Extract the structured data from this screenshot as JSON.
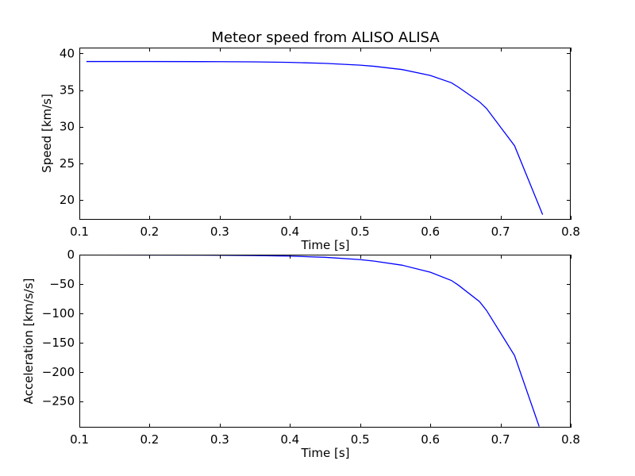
{
  "chart_data": [
    {
      "type": "line",
      "title": "Meteor speed from  ALISO ALISA",
      "xlabel": "Time [s]",
      "ylabel": "Speed [km/s]",
      "xlim": [
        0.1,
        0.8
      ],
      "ylim": [
        17.3,
        40.8
      ],
      "xticks": [
        0.1,
        0.2,
        0.3,
        0.4,
        0.5,
        0.6,
        0.7,
        0.8
      ],
      "xtick_labels": [
        "0.1",
        "0.2",
        "0.3",
        "0.4",
        "0.5",
        "0.6",
        "0.7",
        "0.8"
      ],
      "yticks": [
        20,
        25,
        30,
        35,
        40
      ],
      "ytick_labels": [
        "20",
        "25",
        "30",
        "35",
        "40"
      ],
      "grid": false,
      "color": "#0000ff",
      "series": [
        {
          "x": [
            0.11,
            0.2,
            0.3,
            0.35,
            0.4,
            0.45,
            0.5,
            0.52,
            0.56,
            0.6,
            0.63,
            0.64,
            0.67,
            0.68,
            0.72,
            0.76
          ],
          "y": [
            38.9,
            38.9,
            38.88,
            38.85,
            38.78,
            38.65,
            38.4,
            38.25,
            37.8,
            37.0,
            36.0,
            35.4,
            33.4,
            32.5,
            27.4,
            18.0
          ]
        }
      ]
    },
    {
      "type": "line",
      "title": "",
      "xlabel": "Time [s]",
      "ylabel": "Acceleration [km/s/s]",
      "xlim": [
        0.1,
        0.8
      ],
      "ylim": [
        -295,
        0
      ],
      "xticks": [
        0.1,
        0.2,
        0.3,
        0.4,
        0.5,
        0.6,
        0.7,
        0.8
      ],
      "xtick_labels": [
        "0.1",
        "0.2",
        "0.3",
        "0.4",
        "0.5",
        "0.6",
        "0.7",
        "0.8"
      ],
      "yticks": [
        0,
        -50,
        -100,
        -150,
        -200,
        -250
      ],
      "ytick_labels": [
        "0",
        "−50",
        "−100",
        "−150",
        "−200",
        "−250"
      ],
      "grid": false,
      "color": "#0000ff",
      "series": [
        {
          "x": [
            0.1,
            0.2,
            0.3,
            0.35,
            0.4,
            0.45,
            0.5,
            0.52,
            0.56,
            0.6,
            0.63,
            0.64,
            0.67,
            0.68,
            0.72,
            0.755
          ],
          "y": [
            -0.5,
            -0.6,
            -0.9,
            -1.5,
            -2.5,
            -4.5,
            -8.5,
            -11,
            -18,
            -30,
            -44,
            -52,
            -80,
            -95,
            -172,
            -293
          ]
        }
      ]
    }
  ]
}
